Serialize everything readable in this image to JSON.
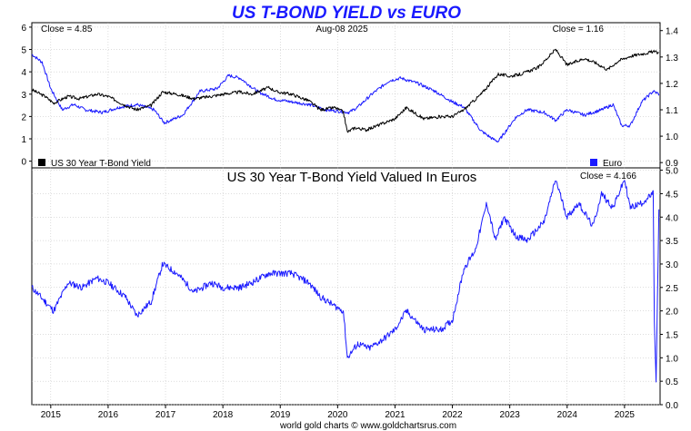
{
  "title": "US T-BOND YIELD vs EURO",
  "footer": "world gold charts © www.goldchartsrus.com",
  "colors": {
    "title": "#1a1aff",
    "bond": "#000000",
    "euro": "#1a1aff",
    "grid": "#bbbbbb"
  },
  "x_ticks": [
    "2015",
    "2016",
    "2017",
    "2018",
    "2019",
    "2020",
    "2021",
    "2022",
    "2023",
    "2024",
    "2025"
  ],
  "chart_data": [
    {
      "type": "line",
      "panel": "top",
      "annotations": {
        "left": "Close = 4.85",
        "center": "Aug-08  2025",
        "right": "Close = 1.16"
      },
      "left_axis": {
        "ticks": [
          "0",
          "1",
          "2",
          "3",
          "4",
          "5",
          "6"
        ],
        "ylim": [
          -0.3,
          6.2
        ]
      },
      "right_axis": {
        "ticks": [
          "0.9",
          "1.0",
          "1.1",
          "1.2",
          "1.3",
          "1.4"
        ],
        "ylim": [
          0.88,
          1.43
        ]
      },
      "legend": [
        "US 30 Year T-Bond Yield",
        "Euro"
      ],
      "series": [
        {
          "name": "US 30 Year T-Bond Yield",
          "axis": "left",
          "x": [
            2014.67,
            2014.9,
            2015.05,
            2015.3,
            2015.5,
            2015.8,
            2016.0,
            2016.3,
            2016.5,
            2016.75,
            2016.95,
            2017.2,
            2017.5,
            2017.8,
            2018.0,
            2018.3,
            2018.5,
            2018.8,
            2018.95,
            2019.2,
            2019.5,
            2019.7,
            2019.95,
            2020.1,
            2020.17,
            2020.3,
            2020.5,
            2020.8,
            2021.0,
            2021.2,
            2021.5,
            2021.8,
            2022.0,
            2022.2,
            2022.5,
            2022.8,
            2023.0,
            2023.2,
            2023.5,
            2023.8,
            2024.0,
            2024.3,
            2024.5,
            2024.7,
            2024.9,
            2025.1,
            2025.3,
            2025.5,
            2025.6
          ],
          "values": [
            3.2,
            2.9,
            2.6,
            2.9,
            2.8,
            3.0,
            2.9,
            2.5,
            2.3,
            2.5,
            3.1,
            3.0,
            2.8,
            2.9,
            3.0,
            3.1,
            3.0,
            3.3,
            3.1,
            3.0,
            2.7,
            2.3,
            2.4,
            2.2,
            1.3,
            1.5,
            1.4,
            1.7,
            1.9,
            2.4,
            1.9,
            2.0,
            2.0,
            2.3,
            3.0,
            3.9,
            3.8,
            3.9,
            4.2,
            5.0,
            4.3,
            4.6,
            4.4,
            4.1,
            4.5,
            4.7,
            4.8,
            4.9,
            4.85
          ]
        },
        {
          "name": "Euro",
          "axis": "right",
          "x": [
            2014.67,
            2014.85,
            2015.0,
            2015.2,
            2015.4,
            2015.6,
            2015.9,
            2016.2,
            2016.5,
            2016.8,
            2016.98,
            2017.3,
            2017.6,
            2017.9,
            2018.1,
            2018.3,
            2018.6,
            2018.9,
            2019.2,
            2019.5,
            2019.8,
            2020.2,
            2020.35,
            2020.6,
            2020.9,
            2021.1,
            2021.4,
            2021.7,
            2022.0,
            2022.2,
            2022.5,
            2022.7,
            2022.8,
            2023.1,
            2023.3,
            2023.6,
            2023.8,
            2024.0,
            2024.3,
            2024.6,
            2024.8,
            2024.95,
            2025.1,
            2025.3,
            2025.5,
            2025.6
          ],
          "values": [
            1.31,
            1.28,
            1.18,
            1.1,
            1.12,
            1.1,
            1.09,
            1.11,
            1.12,
            1.1,
            1.05,
            1.08,
            1.17,
            1.18,
            1.23,
            1.22,
            1.17,
            1.14,
            1.13,
            1.12,
            1.1,
            1.09,
            1.11,
            1.16,
            1.21,
            1.22,
            1.2,
            1.17,
            1.13,
            1.11,
            1.02,
            0.99,
            0.98,
            1.07,
            1.1,
            1.09,
            1.06,
            1.1,
            1.08,
            1.1,
            1.12,
            1.04,
            1.04,
            1.13,
            1.17,
            1.16
          ]
        }
      ]
    },
    {
      "type": "line",
      "panel": "bottom",
      "title": "US 30 Year T-Bond Yield Valued In Euros",
      "annotations": {
        "right": "Close = 4.166"
      },
      "right_axis": {
        "ticks": [
          "0.0",
          "0.5",
          "1.0",
          "1.5",
          "2.0",
          "2.5",
          "3.0",
          "3.5",
          "4.0",
          "4.5",
          "5.0"
        ],
        "ylim": [
          0,
          5.05
        ]
      },
      "series": [
        {
          "name": "US 30 Year T-Bond Yield Valued In Euros",
          "x": [
            2014.67,
            2014.9,
            2015.05,
            2015.3,
            2015.55,
            2015.8,
            2016.0,
            2016.3,
            2016.5,
            2016.75,
            2016.95,
            2017.2,
            2017.5,
            2017.8,
            2018.0,
            2018.3,
            2018.5,
            2018.8,
            2018.95,
            2019.2,
            2019.5,
            2019.7,
            2019.95,
            2020.1,
            2020.17,
            2020.35,
            2020.55,
            2020.8,
            2021.0,
            2021.2,
            2021.5,
            2021.8,
            2022.0,
            2022.2,
            2022.4,
            2022.6,
            2022.75,
            2022.9,
            2023.1,
            2023.3,
            2023.6,
            2023.8,
            2024.0,
            2024.2,
            2024.45,
            2024.6,
            2024.8,
            2025.0,
            2025.1,
            2025.3,
            2025.5,
            2025.52,
            2025.55,
            2025.6
          ],
          "values": [
            2.5,
            2.2,
            2.0,
            2.6,
            2.5,
            2.7,
            2.6,
            2.3,
            1.9,
            2.2,
            3.0,
            2.8,
            2.4,
            2.6,
            2.5,
            2.5,
            2.6,
            2.8,
            2.8,
            2.8,
            2.6,
            2.3,
            2.1,
            2.0,
            1.0,
            1.3,
            1.2,
            1.4,
            1.6,
            2.0,
            1.6,
            1.6,
            1.8,
            2.9,
            3.3,
            4.3,
            3.5,
            4.0,
            3.6,
            3.5,
            3.9,
            4.8,
            4.0,
            4.3,
            3.8,
            4.5,
            4.2,
            4.8,
            4.2,
            4.3,
            4.5,
            1.8,
            0.45,
            4.166
          ]
        }
      ]
    }
  ]
}
